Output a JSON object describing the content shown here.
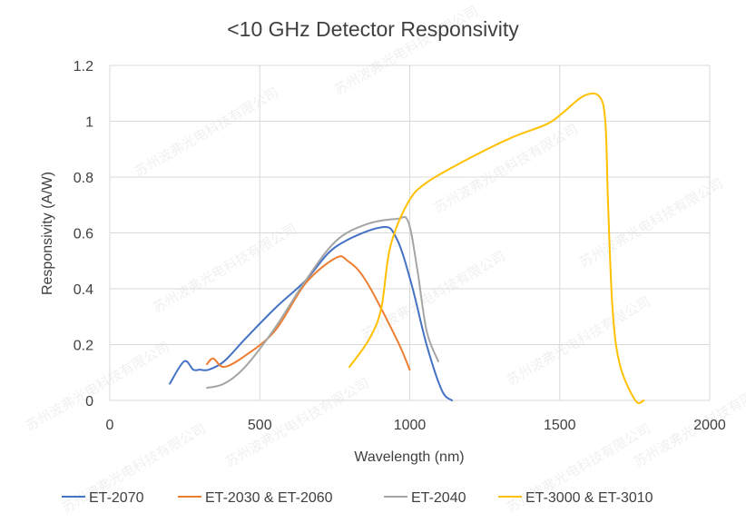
{
  "chart_data": {
    "type": "line",
    "title": "<10 GHz Detector Responsivity",
    "xlabel": "Wavelength (nm)",
    "ylabel": "Responsivity (A/W)",
    "xlim": [
      0,
      2000
    ],
    "ylim": [
      0,
      1.2
    ],
    "xticks": [
      "0",
      "500",
      "1000",
      "1500",
      "2000"
    ],
    "yticks": [
      "0",
      "0.2",
      "0.4",
      "0.6",
      "0.8",
      "1",
      "1.2"
    ],
    "xtick_values": [
      0,
      500,
      1000,
      1500,
      2000
    ],
    "ytick_values": [
      0,
      0.2,
      0.4,
      0.6,
      0.8,
      1,
      1.2
    ],
    "grid": true,
    "legend_placement": "bottom",
    "series": [
      {
        "name": "ET-2070",
        "color": "#4472c4",
        "x": [
          200,
          248,
          278,
          300,
          330,
          381,
          451,
          551,
          653,
          753,
          905,
          956,
          1005,
          1056,
          1107,
          1141
        ],
        "y": [
          0.06,
          0.14,
          0.11,
          0.11,
          0.11,
          0.14,
          0.22,
          0.33,
          0.43,
          0.55,
          0.62,
          0.58,
          0.42,
          0.2,
          0.036,
          0.0
        ]
      },
      {
        "name": "ET-2030 & ET-2060",
        "color": "#ed7d31",
        "x": [
          324,
          345,
          381,
          451,
          551,
          653,
          753,
          793,
          853,
          956,
          1000
        ],
        "y": [
          0.13,
          0.15,
          0.12,
          0.16,
          0.25,
          0.42,
          0.51,
          0.5,
          0.43,
          0.22,
          0.11
        ]
      },
      {
        "name": "ET-2040",
        "color": "#a5a5a5",
        "x": [
          324,
          381,
          451,
          551,
          653,
          753,
          853,
          956,
          995,
          1025,
          1056,
          1095
        ],
        "y": [
          0.045,
          0.06,
          0.12,
          0.26,
          0.43,
          0.57,
          0.63,
          0.65,
          0.64,
          0.47,
          0.25,
          0.14
        ]
      },
      {
        "name": "ET-3000 & ET-3010",
        "color": "#ffc000",
        "x": [
          799,
          865,
          905,
          935,
          995,
          1056,
          1186,
          1337,
          1458,
          1510,
          1579,
          1631,
          1652,
          1661,
          1676,
          1700,
          1752,
          1780
        ],
        "y": [
          0.12,
          0.22,
          0.33,
          0.55,
          0.71,
          0.78,
          0.86,
          0.94,
          0.99,
          1.03,
          1.09,
          1.09,
          1.0,
          0.71,
          0.33,
          0.13,
          0.0,
          0.0
        ]
      }
    ]
  },
  "watermark": "苏州波弗光电科技有限公司"
}
